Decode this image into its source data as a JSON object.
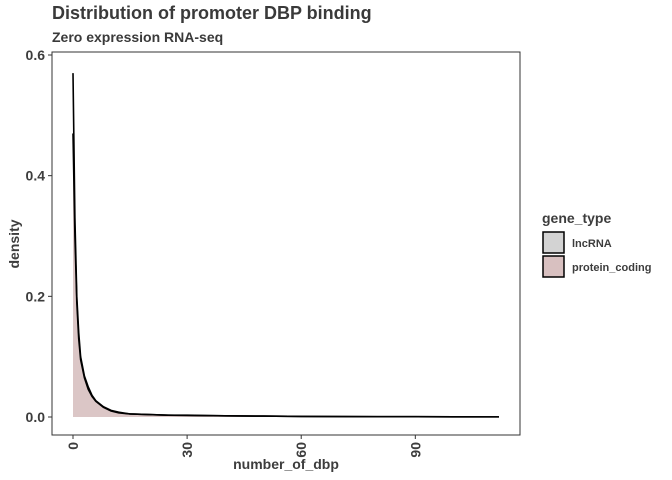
{
  "chart_data": {
    "type": "area",
    "title": "Distribution of promoter DBP binding",
    "subtitle": "Zero expression RNA-seq",
    "xlabel": "number_of_dbp",
    "ylabel": "density",
    "xlim": [
      0,
      112
    ],
    "ylim": [
      0,
      0.6
    ],
    "x_ticks": [
      0,
      30,
      60,
      90
    ],
    "x_tick_labels": [
      "0",
      "30",
      "60",
      "90"
    ],
    "y_ticks": [
      0.0,
      0.2,
      0.4,
      0.6
    ],
    "y_tick_labels": [
      "0.0",
      "0.2",
      "0.4",
      "0.6"
    ],
    "grid": false,
    "legend": {
      "title": "gene_type",
      "position": "right",
      "entries": [
        "lncRNA",
        "protein_coding"
      ]
    },
    "series": [
      {
        "name": "lncRNA",
        "color": "#d3d3d3",
        "x": [
          0,
          0.5,
          1,
          1.5,
          2,
          3,
          4,
          5,
          6,
          8,
          10,
          12,
          15,
          20,
          25,
          30,
          40,
          50,
          60,
          70,
          80,
          90,
          100,
          112
        ],
        "values": [
          0.57,
          0.33,
          0.2,
          0.14,
          0.1,
          0.068,
          0.05,
          0.036,
          0.027,
          0.017,
          0.011,
          0.008,
          0.005,
          0.004,
          0.003,
          0.003,
          0.002,
          0.0015,
          0.001,
          0.0008,
          0.0006,
          0.0005,
          0.0003,
          0.0002
        ]
      },
      {
        "name": "protein_coding",
        "color": "#d8c0c0",
        "x": [
          0,
          0.5,
          1,
          1.5,
          2,
          3,
          4,
          5,
          6,
          8,
          10,
          12,
          15,
          20,
          25,
          30,
          40,
          50,
          60,
          70,
          80,
          90,
          100,
          112
        ],
        "values": [
          0.47,
          0.3,
          0.19,
          0.13,
          0.095,
          0.065,
          0.046,
          0.034,
          0.026,
          0.016,
          0.01,
          0.007,
          0.005,
          0.004,
          0.003,
          0.0025,
          0.002,
          0.0015,
          0.001,
          0.0008,
          0.0006,
          0.0005,
          0.0003,
          0.0002
        ]
      }
    ]
  }
}
